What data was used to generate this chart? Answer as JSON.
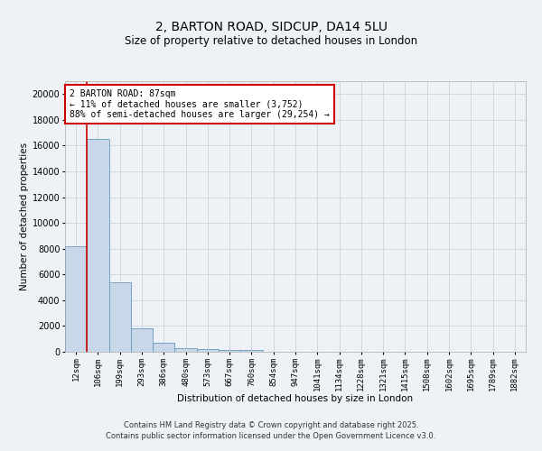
{
  "title": "2, BARTON ROAD, SIDCUP, DA14 5LU",
  "subtitle": "Size of property relative to detached houses in London",
  "xlabel": "Distribution of detached houses by size in London",
  "ylabel": "Number of detached properties",
  "bin_labels": [
    "12sqm",
    "106sqm",
    "199sqm",
    "293sqm",
    "386sqm",
    "480sqm",
    "573sqm",
    "667sqm",
    "760sqm",
    "854sqm",
    "947sqm",
    "1041sqm",
    "1134sqm",
    "1228sqm",
    "1321sqm",
    "1415sqm",
    "1508sqm",
    "1602sqm",
    "1695sqm",
    "1789sqm",
    "1882sqm"
  ],
  "bar_heights": [
    8200,
    16500,
    5400,
    1850,
    700,
    300,
    200,
    150,
    130,
    0,
    0,
    0,
    0,
    0,
    0,
    0,
    0,
    0,
    0,
    0,
    0
  ],
  "bar_color": "#c8d8e8",
  "bar_edge_color": "#6699bb",
  "grid_color": "#d0d8e0",
  "annotation_line1": "2 BARTON ROAD: 87sqm",
  "annotation_line2": "← 11% of detached houses are smaller (3,752)",
  "annotation_line3": "88% of semi-detached houses are larger (29,254) →",
  "annotation_box_color": "#ffffff",
  "annotation_box_edge": "#cc0000",
  "vline_color": "#cc0000",
  "ylim": [
    0,
    21000
  ],
  "yticks": [
    0,
    2000,
    4000,
    6000,
    8000,
    10000,
    12000,
    14000,
    16000,
    18000,
    20000
  ],
  "footer_line1": "Contains HM Land Registry data © Crown copyright and database right 2025.",
  "footer_line2": "Contains public sector information licensed under the Open Government Licence v3.0.",
  "background_color": "#eef2f6",
  "plot_bg_color": "#eef2f6",
  "title_fontsize": 10,
  "subtitle_fontsize": 8.5,
  "tick_fontsize": 6.5,
  "ylabel_fontsize": 7.5,
  "xlabel_fontsize": 7.5,
  "annotation_fontsize": 7,
  "footer_fontsize": 6
}
